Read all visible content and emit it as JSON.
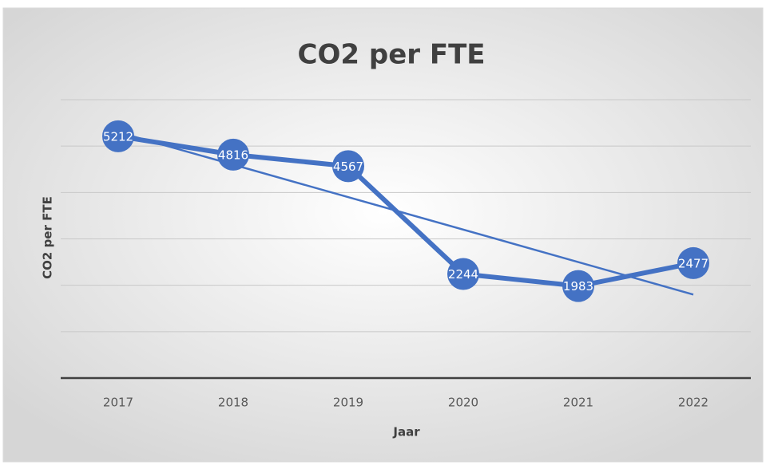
{
  "chart_data": {
    "type": "line",
    "title": "CO2 per FTE",
    "x_label": "Jaar",
    "y_label": "CO2 per FTE",
    "categories": [
      "2017",
      "2018",
      "2019",
      "2020",
      "2021",
      "2022"
    ],
    "series": [
      {
        "name": "CO2 per FTE",
        "color": "#4472c4",
        "values": [
          5212,
          4816,
          4567,
          2244,
          1983,
          2477
        ]
      }
    ],
    "ylim": [
      0,
      6000
    ],
    "yticks": [
      0,
      1000,
      2000,
      3000,
      4000,
      5000,
      6000
    ],
    "grid": true,
    "trendline": "linear",
    "data_labels": true,
    "legend": false
  }
}
